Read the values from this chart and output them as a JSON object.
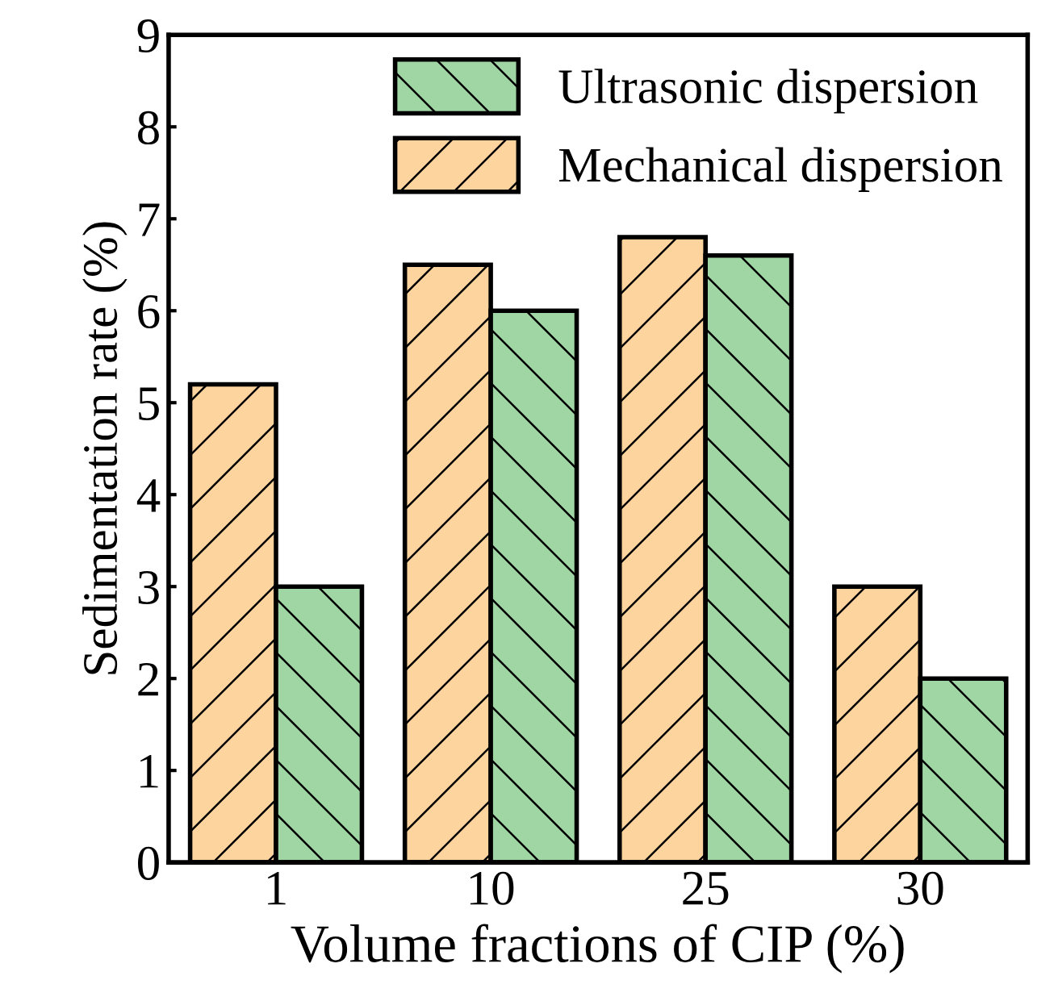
{
  "chart_data": {
    "type": "bar",
    "xlabel": "Volume fractions of CIP (%)",
    "ylabel": "Sedimentation rate (%)",
    "categories": [
      "1",
      "10",
      "25",
      "30"
    ],
    "series": [
      {
        "name": "Mechanical dispersion",
        "color": "#fdd49e",
        "values": [
          5.2,
          6.5,
          6.8,
          3.0
        ]
      },
      {
        "name": "Ultrasonic dispersion",
        "color": "#a0d5a4",
        "values": [
          3.0,
          6.0,
          6.6,
          2.0
        ]
      }
    ],
    "ylim": [
      0,
      9
    ],
    "yticks": [
      0,
      1,
      2,
      3,
      4,
      5,
      6,
      7,
      8,
      9
    ],
    "grid": false,
    "legend": "top right"
  }
}
